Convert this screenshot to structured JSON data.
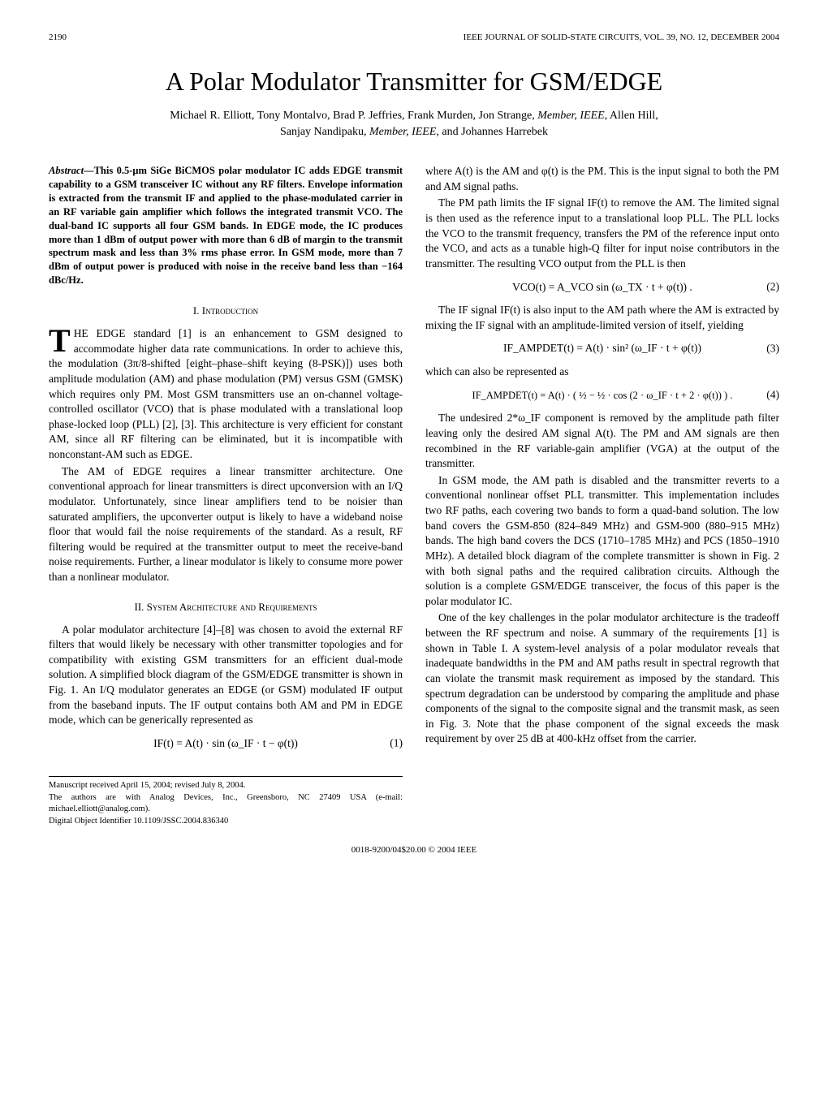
{
  "header": {
    "page_num": "2190",
    "journal": "IEEE JOURNAL OF SOLID-STATE CIRCUITS, VOL. 39, NO. 12, DECEMBER 2004"
  },
  "title": "A Polar Modulator Transmitter for GSM/EDGE",
  "authors_line1": "Michael R. Elliott, Tony Montalvo, Brad P. Jeffries, Frank Murden, Jon Strange",
  "authors_role1": ", Member, IEEE",
  "authors_mid": ", Allen Hill,",
  "authors_line2a": "Sanjay Nandipaku",
  "authors_role2": ", Member, IEEE",
  "authors_line2b": ", and Johannes Harrebek",
  "abstract": {
    "label": "Abstract—",
    "text": "This 0.5-μm SiGe BiCMOS polar modulator IC adds EDGE transmit capability to a GSM transceiver IC without any RF filters. Envelope information is extracted from the transmit IF and applied to the phase-modulated carrier in an RF variable gain amplifier which follows the integrated transmit VCO. The dual-band IC supports all four GSM bands. In EDGE mode, the IC produces more than 1 dBm of output power with more than 6 dB of margin to the transmit spectrum mask and less than 3% rms phase error. In GSM mode, more than 7 dBm of output power is produced with noise in the receive band less than −164 dBc/Hz."
  },
  "sections": {
    "intro_head": "I.  Introduction",
    "intro_p1a": "HE EDGE standard [1] is an enhancement to GSM designed to accommodate higher data rate communications. In order to achieve this, the modulation (3π/8-shifted [eight–phase–shift keying (8-PSK)]) uses both amplitude modulation (AM) and phase modulation (PM) versus GSM (GMSK) which requires only PM. Most GSM transmitters use an on-channel voltage-controlled oscillator (VCO) that is phase modulated with a translational loop phase-locked loop (PLL) [2], [3]. This architecture is very efficient for constant AM, since all RF filtering can be eliminated, but it is incompatible with nonconstant-AM such as EDGE.",
    "intro_p2": "The AM of EDGE requires a linear transmitter architecture. One conventional approach for linear transmitters is direct upconversion with an I/Q modulator. Unfortunately, since linear amplifiers tend to be noisier than saturated amplifiers, the upconverter output is likely to have a wideband noise floor that would fail the noise requirements of the standard. As a result, RF filtering would be required at the transmitter output to meet the receive-band noise requirements. Further, a linear modulator is likely to consume more power than a nonlinear modulator.",
    "arch_head": "II.  System Architecture and Requirements",
    "arch_p1": "A polar modulator architecture [4]–[8] was chosen to avoid the external RF filters that would likely be necessary with other transmitter topologies and for compatibility with existing GSM transmitters for an efficient dual-mode solution. A simplified block diagram of the GSM/EDGE transmitter is shown in Fig. 1. An I/Q modulator generates an EDGE (or GSM) modulated IF output from the baseband inputs. The IF output contains both AM and PM in EDGE mode, which can be generically represented as",
    "eq1": "IF(t) = A(t) · sin (ω_IF · t − φ(t))",
    "eq1_num": "(1)",
    "right_p1": "where A(t) is the AM and φ(t) is the PM. This is the input signal to both the PM and AM signal paths.",
    "right_p2": "The PM path limits the IF signal IF(t) to remove the AM. The limited signal is then used as the reference input to a translational loop PLL. The PLL locks the VCO to the transmit frequency, transfers the PM of the reference input onto the VCO, and acts as a tunable high-Q filter for input noise contributors in the transmitter. The resulting VCO output from the PLL is then",
    "eq2": "VCO(t) = A_VCO sin (ω_TX · t + φ(t)) .",
    "eq2_num": "(2)",
    "right_p3": "The IF signal IF(t) is also input to the AM path where the AM is extracted by mixing the IF signal with an amplitude-limited version of itself, yielding",
    "eq3": "IF_AMPDET(t) = A(t) · sin² (ω_IF · t + φ(t))",
    "eq3_num": "(3)",
    "right_p4": "which can also be represented as",
    "eq4": "IF_AMPDET(t) = A(t) · ( ½ − ½ · cos (2 · ω_IF · t + 2 · φ(t)) ) .",
    "eq4_num": "(4)",
    "right_p5": "The undesired 2*ω_IF component is removed by the amplitude path filter leaving only the desired AM signal A(t). The PM and AM signals are then recombined in the RF variable-gain amplifier (VGA) at the output of the transmitter.",
    "right_p6": "In GSM mode, the AM path is disabled and the transmitter reverts to a conventional nonlinear offset PLL transmitter. This implementation includes two RF paths, each covering two bands to form a quad-band solution. The low band covers the GSM-850 (824–849 MHz) and GSM-900 (880–915 MHz) bands. The high band covers the DCS (1710–1785 MHz) and PCS (1850–1910 MHz). A detailed block diagram of the complete transmitter is shown in Fig. 2 with both signal paths and the required calibration circuits. Although the solution is a complete GSM/EDGE transceiver, the focus of this paper is the polar modulator IC.",
    "right_p7": "One of the key challenges in the polar modulator architecture is the tradeoff between the RF spectrum and noise. A summary of the requirements [1] is shown in Table I. A system-level analysis of a polar modulator reveals that inadequate bandwidths in the PM and AM paths result in spectral regrowth that can violate the transmit mask requirement as imposed by the standard. This spectrum degradation can be understood by comparing the amplitude and phase components of the signal to the composite signal and the transmit mask, as seen in Fig. 3. Note that the phase component of the signal exceeds the mask requirement by over 25 dB at 400-kHz offset from the carrier."
  },
  "footnotes": {
    "f1": "Manuscript received April 15, 2004; revised July 8, 2004.",
    "f2": "The authors are with Analog Devices, Inc., Greensboro, NC 27409 USA (e-mail: michael.elliott@analog.com).",
    "f3": "Digital Object Identifier 10.1109/JSSC.2004.836340"
  },
  "footer": "0018-9200/04$20.00 © 2004 IEEE"
}
